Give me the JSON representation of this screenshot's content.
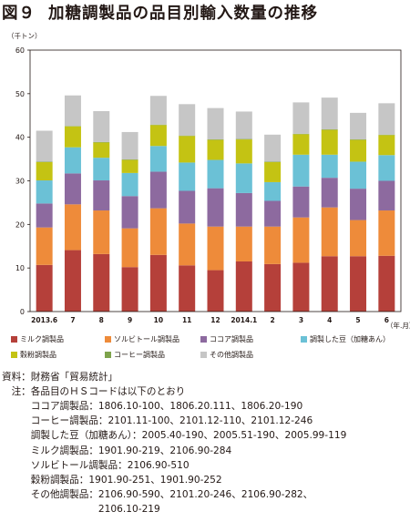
{
  "figure": {
    "number": "図９",
    "title": "加糖調製品の品目別輸入数量の推移"
  },
  "chart_data": {
    "type": "bar",
    "stacked": true,
    "y_unit": "（千トン）",
    "x_unit": "（年.月）",
    "ylim": [
      0,
      60
    ],
    "yticks": [
      "0",
      "10",
      "20",
      "30",
      "40",
      "50",
      "60"
    ],
    "categories": [
      "2013.6",
      "7",
      "8",
      "9",
      "10",
      "11",
      "12",
      "2014.1",
      "2",
      "3",
      "4",
      "5",
      "6"
    ],
    "grid": false,
    "legend_position": "bottom",
    "series": [
      {
        "name": "ミルク調製品",
        "color": "#b5403a",
        "values": [
          10.7,
          14.1,
          13.2,
          10.2,
          13.0,
          10.6,
          9.5,
          11.5,
          10.9,
          11.2,
          12.7,
          12.7,
          12.8
        ]
      },
      {
        "name": "ソルビトール調製品",
        "color": "#ee8b3a",
        "values": [
          8.6,
          10.5,
          10.0,
          8.9,
          10.7,
          9.6,
          10.0,
          8.0,
          8.6,
          10.4,
          11.2,
          8.3,
          10.4
        ]
      },
      {
        "name": "ココア調製品",
        "color": "#8d6a9f",
        "values": [
          5.5,
          7.1,
          6.9,
          7.4,
          8.4,
          7.5,
          8.8,
          7.7,
          5.9,
          7.1,
          6.8,
          7.2,
          6.8
        ]
      },
      {
        "name": "調製した豆（加糖あん）",
        "color": "#6bc1d6",
        "values": [
          5.3,
          6.0,
          5.2,
          5.3,
          5.9,
          6.5,
          6.5,
          6.8,
          4.3,
          7.3,
          5.3,
          6.2,
          5.9
        ]
      },
      {
        "name": "穀粉調製品",
        "color": "#c4c313",
        "values": [
          4.2,
          4.8,
          3.5,
          3.0,
          4.8,
          6.1,
          4.6,
          5.5,
          4.6,
          4.7,
          5.7,
          5.0,
          4.6
        ]
      },
      {
        "name": "コーヒー調製品",
        "color": "#7ea34c",
        "values": [
          0.1,
          0.1,
          0.1,
          0.1,
          0.1,
          0.1,
          0.1,
          0.1,
          0.1,
          0.1,
          0.1,
          0.1,
          0.1
        ]
      },
      {
        "name": "その他調製品",
        "color": "#c6c6c6",
        "values": [
          7.1,
          7.0,
          7.1,
          6.3,
          6.6,
          7.2,
          7.2,
          6.3,
          6.2,
          7.2,
          7.3,
          6.1,
          7.2
        ]
      }
    ]
  },
  "notes": [
    "資料：財務省「貿易統計」",
    "　注：各品目のＨＳコードは以下のとおり",
    "　　　ココア調製品：1806.10-100、1806.20.111、1806.20-190",
    "　　　コーヒー調製品：2101.11-100、2101.12-110、2101.12-246",
    "　　　調製した豆（加糖あん）：2005.40-190、2005.51-190、2005.99-119",
    "　　　ミルク調製品：1901.90-219、2106.90-284",
    "　　　ソルビトール調製品：2106.90-510",
    "　　　穀粉調製品：1901.90-251、1901.90-252",
    "　　　その他調製品：2106.90-590、2101.20-246、2106.90-282、",
    "　　　　　　　　　　2106.10-219"
  ]
}
